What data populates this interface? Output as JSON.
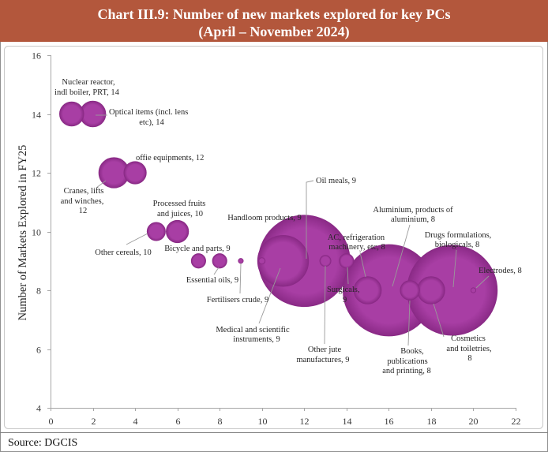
{
  "source": "Source: DGCIS",
  "colors": {
    "title_bg": "#b3573c",
    "title_text": "#ffffff",
    "bubble": "#a83ea4",
    "bubble_edge": "#8a2a86",
    "leader_line": "#9a9a9a",
    "axis": "#a6a6a6"
  },
  "chart_data": {
    "type": "scatter",
    "title": "Chart III.9: Number of new markets explored for key PCs",
    "subtitle": "(April – November 2024)",
    "ylabel": "Number of Markets Explored in FY25",
    "xlim": [
      0,
      22
    ],
    "ylim": [
      4,
      16
    ],
    "x_ticks": [
      0,
      2,
      4,
      6,
      8,
      10,
      12,
      14,
      16,
      18,
      20,
      22
    ],
    "y_ticks": [
      4,
      6,
      8,
      10,
      12,
      14,
      16
    ],
    "grid": false,
    "points": [
      {
        "x": 1,
        "y": 14,
        "size": 7,
        "label_lines": [
          "Nuclear reactor,",
          "indl boiler, PRT, 14"
        ]
      },
      {
        "x": 2,
        "y": 14,
        "size": 8,
        "label_lines": [
          "Optical items (incl. lens",
          "etc), 14"
        ]
      },
      {
        "x": 3,
        "y": 12,
        "size": 11,
        "label_lines": [
          "Cranes, lifts",
          "and winches,",
          "12"
        ]
      },
      {
        "x": 4,
        "y": 12,
        "size": 6,
        "label_lines": [
          "offie equipments, 12"
        ]
      },
      {
        "x": 5,
        "y": 10,
        "size": 4,
        "label_lines": [
          "Other cereals, 10"
        ]
      },
      {
        "x": 6,
        "y": 10,
        "size": 6,
        "label_lines": [
          "Processed fruits",
          "and juices, 10"
        ]
      },
      {
        "x": 7,
        "y": 9,
        "size": 2.5,
        "label_lines": [
          "Bicycle and parts, 9"
        ]
      },
      {
        "x": 8,
        "y": 9,
        "size": 2.5,
        "label_lines": [
          "Essential oils, 9"
        ]
      },
      {
        "x": 9,
        "y": 9,
        "size": 0.3,
        "label_lines": [
          "Fertilisers crude, 9"
        ]
      },
      {
        "x": 10,
        "y": 9,
        "size": 0.5,
        "label_lines": [
          "Handloom products, 9"
        ]
      },
      {
        "x": 11,
        "y": 9,
        "size": 31,
        "label_lines": [
          "Medical and scientific",
          "instruments, 9"
        ]
      },
      {
        "x": 12,
        "y": 9,
        "size": 100,
        "label_lines": [
          "Oil meals, 9"
        ]
      },
      {
        "x": 13,
        "y": 9,
        "size": 1.5,
        "label_lines": [
          "Other jute",
          "manufactures, 9"
        ]
      },
      {
        "x": 14,
        "y": 9,
        "size": 2.5,
        "label_lines": [
          "Surgicals,",
          "9"
        ]
      },
      {
        "x": 15,
        "y": 8,
        "size": 9,
        "label_lines": [
          "AC, refrigeration",
          "machinery, etc, 8"
        ]
      },
      {
        "x": 16,
        "y": 8,
        "size": 100,
        "label_lines": [
          "Aluminium, products of",
          "aluminium, 8"
        ]
      },
      {
        "x": 17,
        "y": 8,
        "size": 4.5,
        "label_lines": [
          "Books,",
          "publications",
          "and printing, 8"
        ]
      },
      {
        "x": 18,
        "y": 8,
        "size": 9,
        "label_lines": [
          "Cosmetics",
          "and toiletries,",
          "8"
        ]
      },
      {
        "x": 19,
        "y": 8,
        "size": 97,
        "label_lines": [
          "Drugs formulations,",
          "biologicals, 8"
        ]
      },
      {
        "x": 20,
        "y": 8,
        "size": 0.3,
        "label_lines": [
          "Electrodes, 8"
        ]
      }
    ]
  }
}
